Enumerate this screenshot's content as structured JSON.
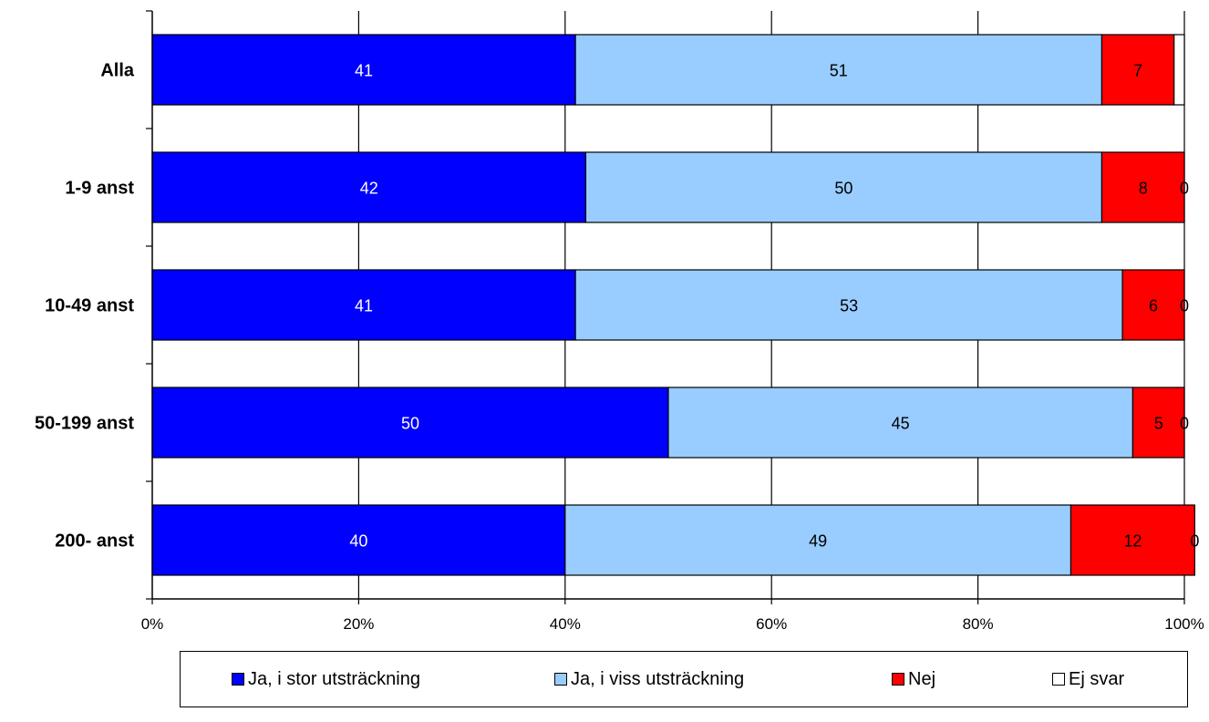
{
  "chart_data": {
    "type": "bar",
    "orientation": "horizontal",
    "stacked": true,
    "categories": [
      "Alla",
      "1-9 anst",
      "10-49 anst",
      "50-199 anst",
      "200- anst"
    ],
    "series": [
      {
        "name": "Ja, i stor utsträckning",
        "color": "#0000ff",
        "values": [
          41,
          42,
          41,
          50,
          40
        ],
        "labels": [
          "41",
          "42",
          "41",
          "50",
          "40"
        ],
        "label_color": "#ffffff"
      },
      {
        "name": "Ja, i viss utsträckning",
        "color": "#99ccff",
        "values": [
          51,
          50,
          53,
          45,
          49
        ],
        "labels": [
          "51",
          "50",
          "53",
          "45",
          "49"
        ],
        "label_color": "#000000"
      },
      {
        "name": "Nej",
        "color": "#ff0000",
        "values": [
          7,
          8,
          6,
          5,
          12
        ],
        "labels": [
          "7",
          "8",
          "6",
          "5",
          "12"
        ],
        "label_color": "#000000"
      },
      {
        "name": "Ej svar",
        "color": "#ffffff",
        "values": [
          1,
          0,
          0,
          0,
          0
        ],
        "labels": [
          "",
          "0",
          "0",
          "0",
          "0"
        ],
        "label_color": "#000000"
      }
    ],
    "xaxis": {
      "ticks": [
        "0%",
        "20%",
        "40%",
        "60%",
        "80%",
        "100%"
      ],
      "range": [
        0,
        100
      ]
    },
    "grid": true,
    "legend_position": "bottom"
  }
}
